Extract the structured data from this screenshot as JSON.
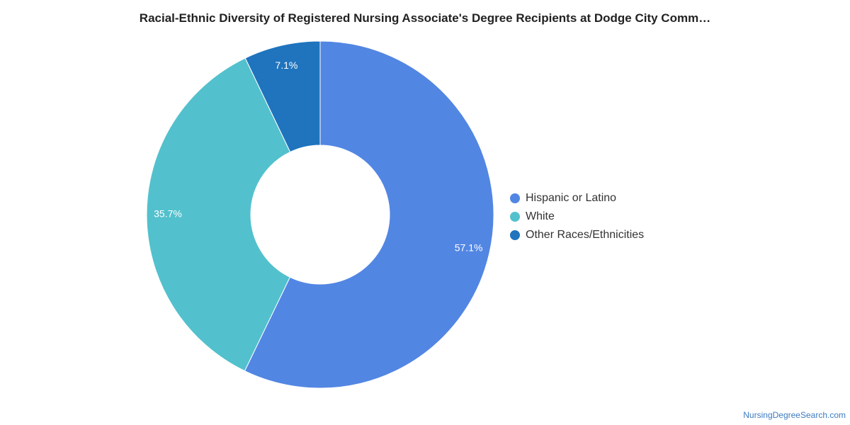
{
  "chart_data": {
    "type": "pie",
    "title": "Racial-Ethnic Diversity of Registered Nursing Associate's Degree Recipients at Dodge City Comm…",
    "categories": [
      "Hispanic or Latino",
      "White",
      "Other Races/Ethnicities"
    ],
    "values": [
      57.1,
      35.7,
      7.1
    ],
    "labels": [
      "57.1%",
      "35.7%",
      "7.1%"
    ],
    "colors": [
      "#5286e3",
      "#52c1cd",
      "#1f74bd"
    ],
    "donut": true,
    "legend": "right",
    "grid": false
  },
  "source": {
    "label": "NursingDegreeSearch.com"
  }
}
